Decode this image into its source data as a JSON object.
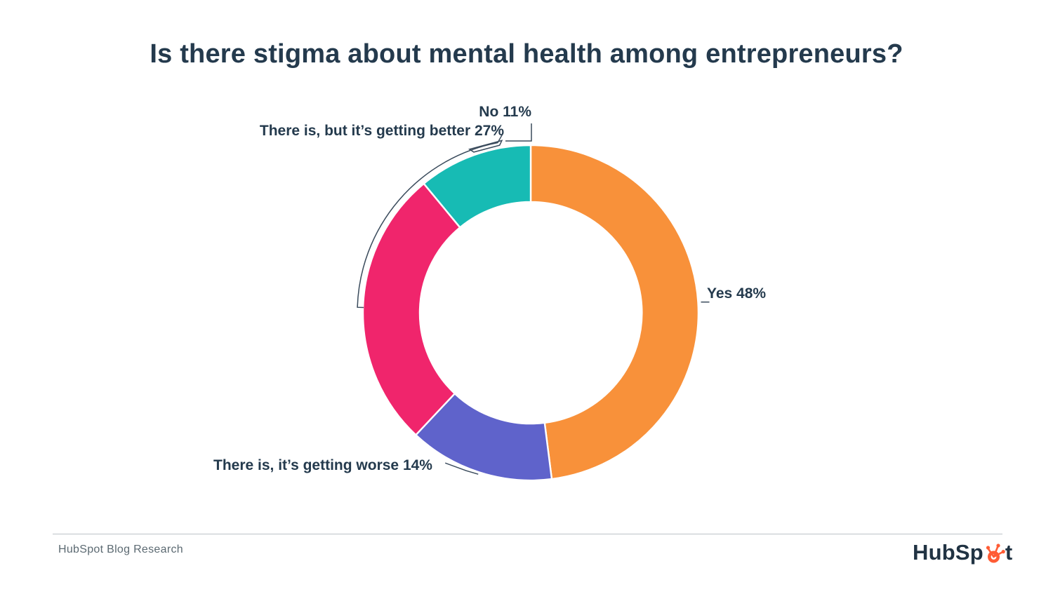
{
  "chart_data": {
    "type": "pie",
    "subtype": "donut",
    "title": "Is there stigma about mental health among entrepreneurs?",
    "unit": "%",
    "direction": "clockwise-from-top",
    "segments": [
      {
        "label": "Yes",
        "value": 48,
        "display": "Yes 48%",
        "color": "#F8913A"
      },
      {
        "label": "There is, it’s getting worse",
        "value": 14,
        "display": "There is, it’s getting worse 14%",
        "color": "#5F63CB"
      },
      {
        "label": "There is, but it’s getting better",
        "value": 27,
        "display": "There is, but it’s getting better 27%",
        "color": "#F0256C"
      },
      {
        "label": "No",
        "value": 11,
        "display": "No 11%",
        "color": "#17BBB4"
      }
    ],
    "legend_position": "callout-labels",
    "grid": false
  },
  "footer": {
    "source": "HubSpot Blog Research",
    "brand": "HubSpot",
    "brand_accent": "#FF5C35"
  },
  "colors": {
    "title_text": "#243A4D",
    "label_text": "#243A4D",
    "leader_line": "#3A4B5C",
    "divider": "#BCC2C7",
    "source_text": "#5C6A72",
    "brand_text": "#213343",
    "background": "#FFFFFF"
  }
}
